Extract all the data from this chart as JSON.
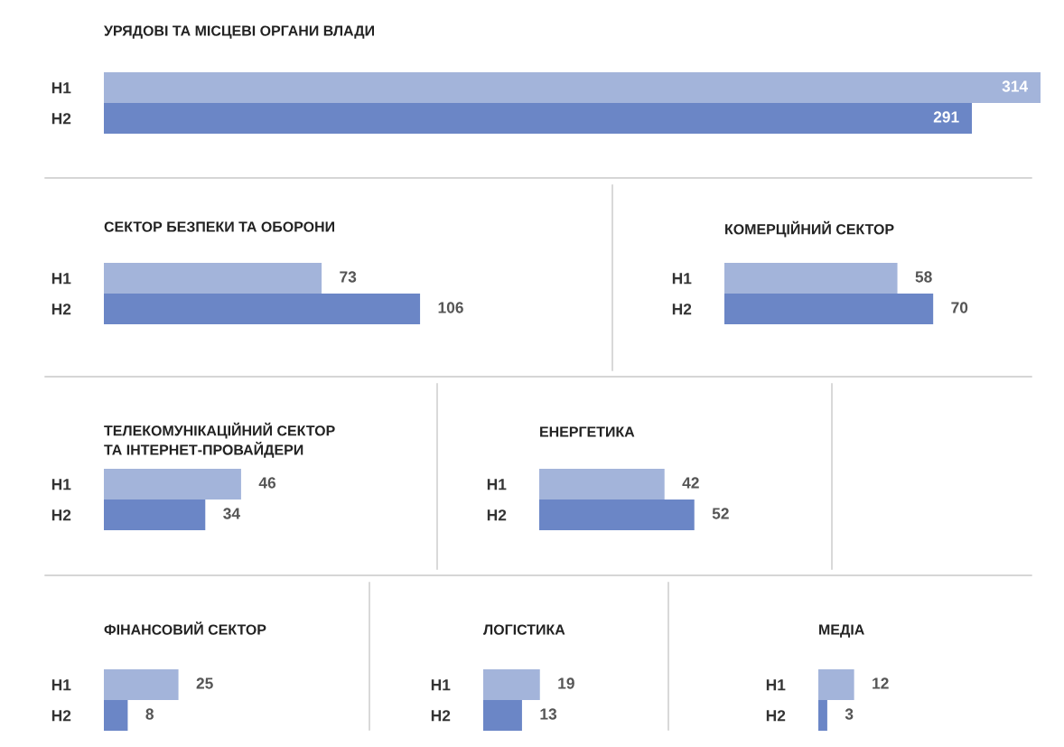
{
  "chart_data": [
    {
      "type": "bar",
      "orientation": "horizontal",
      "title": "УРЯДОВІ ТА МІСЦЕВІ ОРГАНИ ВЛАДИ",
      "categories": [
        "H1",
        "H2"
      ],
      "values": [
        314,
        291
      ],
      "colors": [
        "#a3b4da",
        "#6b86c6"
      ],
      "data_labels": true,
      "tick_labels": "y"
    },
    {
      "type": "bar",
      "orientation": "horizontal",
      "title": "СЕКТОР БЕЗПЕКИ ТА ОБОРОНИ",
      "categories": [
        "H1",
        "H2"
      ],
      "values": [
        73,
        106
      ],
      "colors": [
        "#a3b4da",
        "#6b86c6"
      ],
      "data_labels": true,
      "tick_labels": "y"
    },
    {
      "type": "bar",
      "orientation": "horizontal",
      "title": "КОМЕРЦІЙНИЙ СЕКТОР",
      "categories": [
        "H1",
        "H2"
      ],
      "values": [
        58,
        70
      ],
      "colors": [
        "#a3b4da",
        "#6b86c6"
      ],
      "data_labels": true,
      "tick_labels": "y"
    },
    {
      "type": "bar",
      "orientation": "horizontal",
      "title": "ТЕЛЕКОМУНІКАЦІЙНИЙ СЕКТОР\nТА ІНТЕРНЕТ-ПРОВАЙДЕРИ",
      "categories": [
        "H1",
        "H2"
      ],
      "values": [
        46,
        34
      ],
      "colors": [
        "#a3b4da",
        "#6b86c6"
      ],
      "data_labels": true,
      "tick_labels": "y"
    },
    {
      "type": "bar",
      "orientation": "horizontal",
      "title": "ЕНЕРГЕТИКА",
      "categories": [
        "H1",
        "H2"
      ],
      "values": [
        42,
        52
      ],
      "colors": [
        "#a3b4da",
        "#6b86c6"
      ],
      "data_labels": true,
      "tick_labels": "y"
    },
    {
      "type": "bar",
      "orientation": "horizontal",
      "title": "ФІНАНСОВИЙ СЕКТОР",
      "categories": [
        "H1",
        "H2"
      ],
      "values": [
        25,
        8
      ],
      "colors": [
        "#a3b4da",
        "#6b86c6"
      ],
      "data_labels": true,
      "tick_labels": "y"
    },
    {
      "type": "bar",
      "orientation": "horizontal",
      "title": "ЛОГІСТИКА",
      "categories": [
        "H1",
        "H2"
      ],
      "values": [
        19,
        13
      ],
      "colors": [
        "#a3b4da",
        "#6b86c6"
      ],
      "data_labels": true,
      "tick_labels": "y"
    },
    {
      "type": "bar",
      "orientation": "horizontal",
      "title": "МЕДІА",
      "categories": [
        "H1",
        "H2"
      ],
      "values": [
        12,
        3
      ],
      "colors": [
        "#a3b4da",
        "#6b86c6"
      ],
      "data_labels": true,
      "tick_labels": "y"
    }
  ]
}
